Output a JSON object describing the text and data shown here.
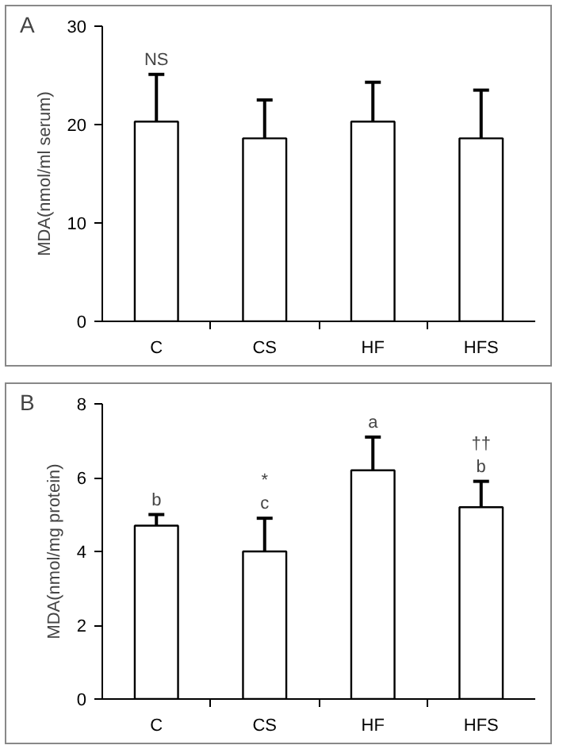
{
  "chart_data": [
    {
      "type": "bar",
      "title": "A",
      "ylabel": "MDA(nmol/ml serum)",
      "categories": [
        "C",
        "CS",
        "HF",
        "HFS"
      ],
      "values": [
        20.3,
        18.6,
        20.3,
        18.6
      ],
      "color": "#ffffff",
      "errors": [
        [
          20.3,
          25.1
        ],
        [
          18.6,
          22.5
        ],
        [
          20.3,
          24.3
        ],
        [
          18.6,
          23.5
        ]
      ],
      "ylim": [
        0,
        30
      ],
      "yticks": [
        0,
        10,
        20,
        30
      ],
      "grid": false,
      "annotations": [
        {
          "text": "NS",
          "x": "C",
          "y": 25.1
        }
      ]
    },
    {
      "type": "bar",
      "title": "B",
      "ylabel": "MDA(nmol/mg protein)",
      "categories": [
        "C",
        "CS",
        "HF",
        "HFS"
      ],
      "values": [
        4.7,
        4.0,
        6.2,
        5.2
      ],
      "color": "#ffffff",
      "errors": [
        [
          4.7,
          5.0
        ],
        [
          4.0,
          4.9
        ],
        [
          6.2,
          7.1
        ],
        [
          5.2,
          5.9
        ]
      ],
      "ylim": [
        0,
        8
      ],
      "yticks": [
        0,
        2,
        4,
        6,
        8
      ],
      "grid": false,
      "annotations": [
        {
          "text": "b",
          "x": "C",
          "y": 5.0
        },
        {
          "text": "*\nc",
          "x": "CS",
          "y": 4.9
        },
        {
          "text": "a",
          "x": "HF",
          "y": 7.1
        },
        {
          "text": "††\nb",
          "x": "HFS",
          "y": 5.9
        }
      ]
    }
  ]
}
